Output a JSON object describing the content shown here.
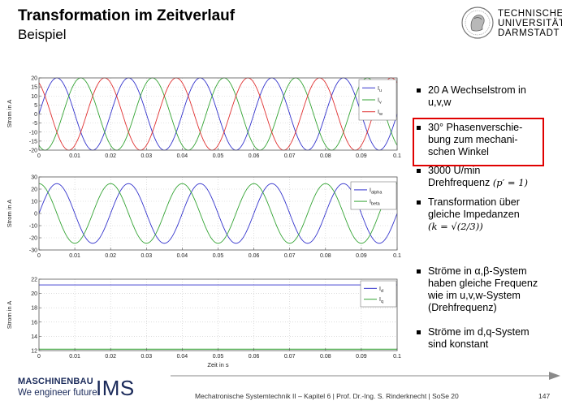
{
  "header": {
    "title": "Transformation im Zeitverlauf",
    "subtitle": "Beispiel",
    "logo_lines": [
      "TECHNISCHE",
      "UNIVERSITÄT",
      "DARMSTADT"
    ]
  },
  "bullets": [
    {
      "text": "20 A Wechselstrom in\nu,v,w"
    },
    {
      "text": "30° Phasenverschie-\nbung zum mechani-\nschen Winkel"
    },
    {
      "text": "3000 U/min\nDrehfrequenz",
      "math": "(p′ = 1)"
    },
    {
      "text": "Transformation über\ngleiche Impedanzen",
      "math": "(k = √(2/3))"
    },
    {
      "text": "Ströme in α,β-System\nhaben gleiche Frequenz\nwie im u,v,w-System\n(Drehfrequenz)"
    },
    {
      "text": "Ströme im d,q-System\nsind konstant"
    }
  ],
  "chart_data": [
    {
      "type": "line",
      "ylabel": "Strom in A",
      "xlabel": "",
      "xlim": [
        0,
        0.1
      ],
      "ylim": [
        -20,
        20
      ],
      "xticks": [
        "0",
        "0.01",
        "0.02",
        "0.03",
        "0.04",
        "0.05",
        "0.06",
        "0.07",
        "0.08",
        "0.09",
        "0.1"
      ],
      "yticks": [
        "20",
        "15",
        "10",
        "5",
        "0",
        "-5",
        "-10",
        "-15",
        "-20"
      ],
      "legend_position": "top-right",
      "series": [
        {
          "name": "I_u",
          "label_main": "I",
          "label_sub": "u",
          "amplitude": 20,
          "frequency_hz": 50,
          "phase_deg": 0,
          "color": "#3333cc"
        },
        {
          "name": "I_v",
          "label_main": "I",
          "label_sub": "v",
          "amplitude": 20,
          "frequency_hz": 50,
          "phase_deg": -120,
          "color": "#33a333"
        },
        {
          "name": "I_w",
          "label_main": "I",
          "label_sub": "w",
          "amplitude": 20,
          "frequency_hz": 50,
          "phase_deg": 120,
          "color": "#e03030"
        }
      ]
    },
    {
      "type": "line",
      "ylabel": "Strom in A",
      "xlabel": "",
      "xlim": [
        0,
        0.1
      ],
      "ylim": [
        -30,
        30
      ],
      "xticks": [
        "0",
        "0.01",
        "0.02",
        "0.03",
        "0.04",
        "0.05",
        "0.06",
        "0.07",
        "0.08",
        "0.09",
        "0.1"
      ],
      "yticks": [
        "30",
        "20",
        "10",
        "0",
        "-10",
        "-20",
        "-30"
      ],
      "legend_position": "top-right",
      "series": [
        {
          "name": "I_alpha",
          "label_main": "I",
          "label_sub": "alpha",
          "amplitude": 24.5,
          "frequency_hz": 50,
          "phase_deg": 0,
          "color": "#3333cc"
        },
        {
          "name": "I_beta",
          "label_main": "I",
          "label_sub": "beta",
          "amplitude": 24.5,
          "frequency_hz": 50,
          "phase_deg": 90,
          "color": "#33a333"
        }
      ]
    },
    {
      "type": "line",
      "ylabel": "Strom in A",
      "xlabel": "Zeit in s",
      "xlim": [
        0,
        0.1
      ],
      "ylim": [
        12,
        22
      ],
      "xticks": [
        "0",
        "0.01",
        "0.02",
        "0.03",
        "0.04",
        "0.05",
        "0.06",
        "0.07",
        "0.08",
        "0.09",
        "0.1"
      ],
      "yticks": [
        "22",
        "20",
        "18",
        "16",
        "14",
        "12"
      ],
      "legend_position": "top-right",
      "series": [
        {
          "name": "I_d",
          "label_main": "I",
          "label_sub": "d",
          "constant": 21.2,
          "color": "#3333cc"
        },
        {
          "name": "I_q",
          "label_main": "I",
          "label_sub": "q",
          "constant": 12.2,
          "color": "#33a333"
        }
      ]
    }
  ],
  "footer": {
    "brand_top": "MASCHINENBAU",
    "brand_bottom": "We engineer future",
    "brand_ims": "IMS",
    "text": "Mechatronische Systemtechnik II – Kapitel 6  |  Prof. Dr.-Ing. S. Rinderknecht  |  SoSe 20",
    "page_number": "147"
  }
}
